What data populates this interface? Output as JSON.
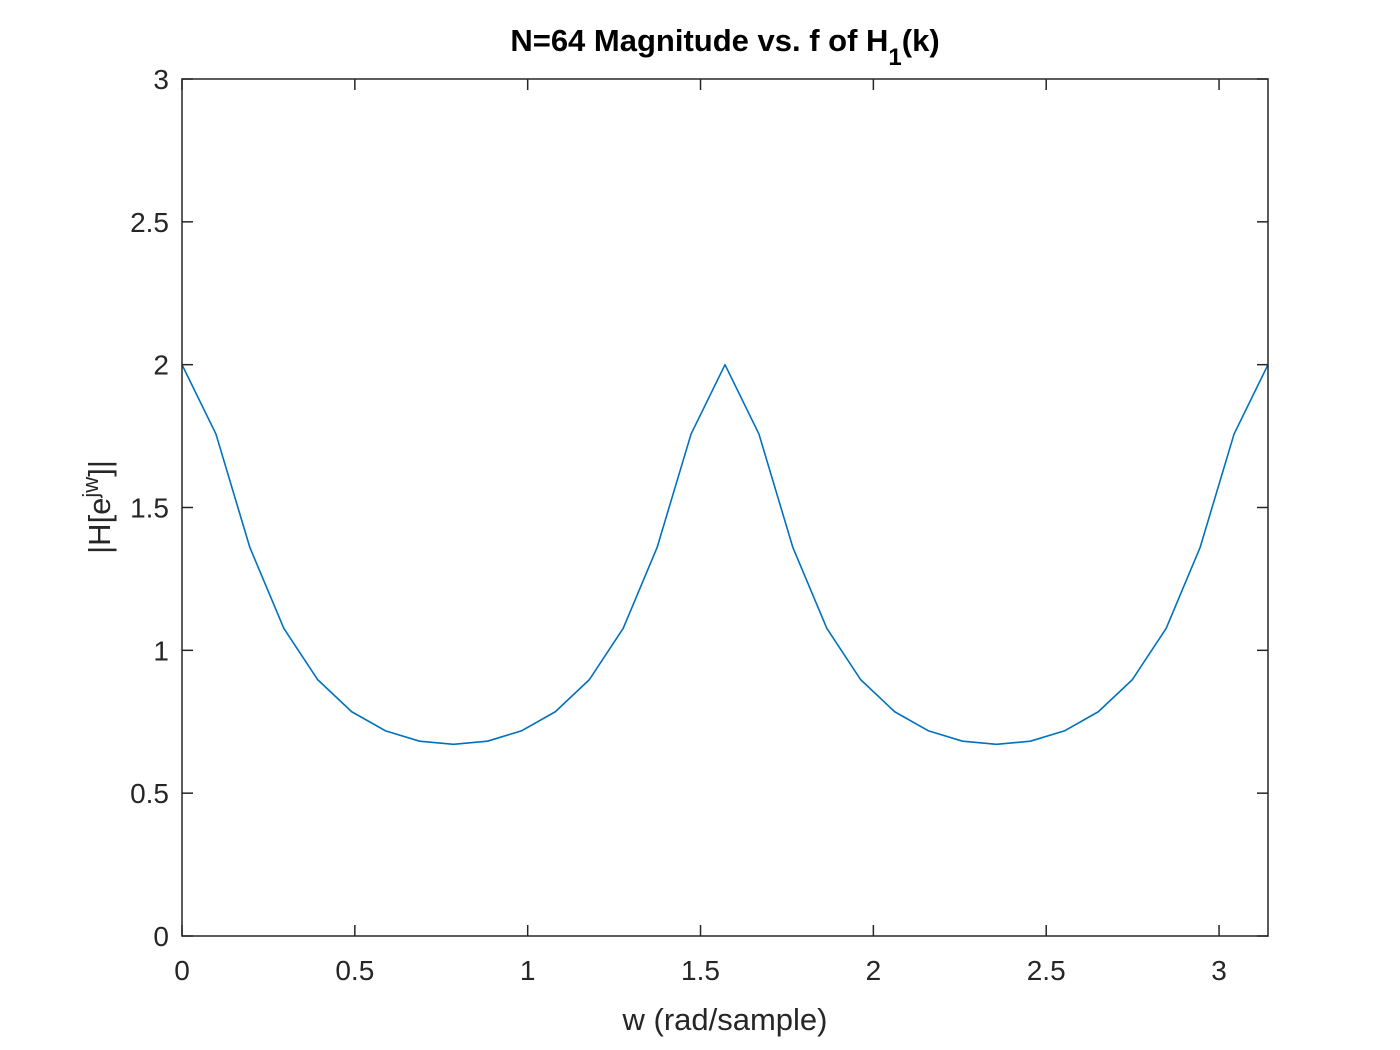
{
  "chart_data": {
    "type": "line",
    "title_parts": {
      "main": "N=64 Magnitude vs. f of H",
      "sub": "1",
      "tail": "(k)"
    },
    "xlabel": "w (rad/sample)",
    "ylabel_parts": {
      "pre": "|H[e",
      "sup": "jw",
      "post": "]|"
    },
    "xlim": [
      0,
      3.1416
    ],
    "ylim": [
      0,
      3
    ],
    "xticks": [
      0,
      0.5,
      1,
      1.5,
      2,
      2.5,
      3
    ],
    "xtick_labels": [
      "0",
      "0.5",
      "1",
      "1.5",
      "2",
      "2.5",
      "3"
    ],
    "yticks": [
      0,
      0.5,
      1,
      1.5,
      2,
      2.5,
      3
    ],
    "ytick_labels": [
      "0",
      "0.5",
      "1",
      "1.5",
      "2",
      "2.5",
      "3"
    ],
    "grid": false,
    "series": [
      {
        "color": "#0072BD",
        "x": [
          0,
          0.0982,
          0.1963,
          0.2945,
          0.3927,
          0.4909,
          0.589,
          0.6872,
          0.7854,
          0.8836,
          0.9817,
          1.0799,
          1.1781,
          1.2763,
          1.3744,
          1.4726,
          1.5708,
          1.669,
          1.7671,
          1.8653,
          1.9635,
          2.0617,
          2.1598,
          2.258,
          2.3562,
          2.4544,
          2.5525,
          2.6507,
          2.7489,
          2.8471,
          2.9452,
          3.0434,
          3.1416
        ],
        "y": [
          2.0,
          1.757,
          1.36,
          1.077,
          0.897,
          0.785,
          0.718,
          0.682,
          0.671,
          0.682,
          0.718,
          0.785,
          0.897,
          1.077,
          1.36,
          1.757,
          2.0,
          1.757,
          1.36,
          1.077,
          0.897,
          0.785,
          0.718,
          0.682,
          0.671,
          0.682,
          0.718,
          0.785,
          0.897,
          1.077,
          1.36,
          1.757,
          2.0
        ]
      }
    ]
  }
}
